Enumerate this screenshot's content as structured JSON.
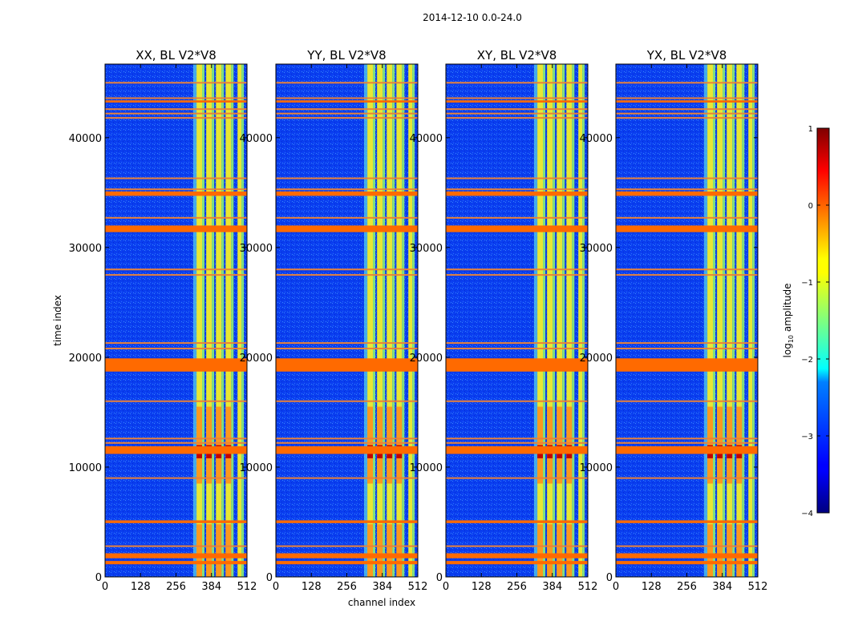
{
  "colors": {
    "base_low": "#0a3ef0",
    "base_mid": "#2a7cf5",
    "flag_band": "#ff6a00",
    "flag_line": "#e8823a",
    "stripe_yellow": "#f4f028",
    "stripe_green": "#8ff070",
    "stripe_cyan": "#5ad8e8",
    "hot_red": "#c00000",
    "hot_orange": "#ff8a1a"
  },
  "chart_data": {
    "type": "heatmap",
    "title": "2014-12-10 0.0-24.0",
    "xlabel": "channel index",
    "ylabel": "time index",
    "xlim": [
      0,
      512
    ],
    "ylim": [
      0,
      46700
    ],
    "x_ticks": [
      0,
      128,
      256,
      384,
      512
    ],
    "x_tick_labels": [
      "0",
      "128",
      "256",
      "384",
      "512"
    ],
    "y_ticks": [
      0,
      10000,
      20000,
      30000,
      40000
    ],
    "y_tick_labels": [
      "0",
      "10000",
      "20000",
      "30000",
      "40000"
    ],
    "panels": [
      {
        "title": "XX, BL V2*V8",
        "pol": "XX",
        "baseline": "V2*V8"
      },
      {
        "title": "YY, BL V2*V8",
        "pol": "YY",
        "baseline": "V2*V8"
      },
      {
        "title": "XY, BL V2*V8",
        "pol": "XY",
        "baseline": "V2*V8"
      },
      {
        "title": "YX, BL V2*V8",
        "pol": "YX",
        "baseline": "V2*V8"
      }
    ],
    "colorbar": {
      "label_prefix": "log",
      "label_sub": "10",
      "label_suffix": " amplitude",
      "vmin": -4,
      "vmax": 1,
      "ticks": [
        1,
        0,
        -1,
        -2,
        -3,
        -4
      ],
      "tick_labels": [
        "1",
        "0",
        "−1",
        "−2",
        "−3",
        "−4"
      ],
      "colormap": "jet"
    },
    "flagged_time_ranges": [
      [
        1150,
        1450
      ],
      [
        1700,
        2150
      ],
      [
        4900,
        5150
      ],
      [
        11200,
        11900
      ],
      [
        18700,
        19900
      ],
      [
        31400,
        32000
      ],
      [
        34700,
        35100
      ],
      [
        43200,
        43400
      ]
    ],
    "flagged_time_lines": [
      2800,
      9000,
      12200,
      12600,
      16000,
      20800,
      21300,
      27500,
      28000,
      32700,
      35300,
      36300,
      41800,
      42200,
      42600,
      43600,
      45000
    ],
    "bright_channel_ranges": [
      [
        330,
        350
      ],
      [
        365,
        385
      ],
      [
        400,
        420
      ],
      [
        435,
        455
      ],
      [
        478,
        492
      ]
    ],
    "hot_time_ranges": [
      [
        0,
        4800
      ],
      [
        8500,
        15500
      ]
    ]
  }
}
